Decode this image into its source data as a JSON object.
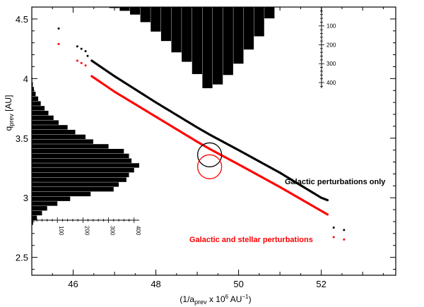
{
  "chart_data": {
    "type": "scatter",
    "xlabel": "(1/a_prev x 10^6 AU^-1)",
    "ylabel": "q_prev [AU]",
    "xlim": [
      45,
      53.8
    ],
    "ylim": [
      2.35,
      4.6
    ],
    "x_ticks": [
      46,
      48,
      50,
      52
    ],
    "y_ticks": [
      2.5,
      3,
      3.5,
      4,
      4.5
    ],
    "grid": false,
    "series": [
      {
        "name": "Galactic perturbations only",
        "color": "#000000",
        "isolated_points": [
          [
            45.65,
            4.42
          ],
          [
            46.1,
            4.27
          ],
          [
            46.2,
            4.25
          ],
          [
            46.3,
            4.23
          ],
          [
            46.35,
            4.19
          ]
        ],
        "curve_points": [
          [
            46.45,
            4.15
          ],
          [
            47.0,
            4.02
          ],
          [
            48.0,
            3.8
          ],
          [
            49.0,
            3.59
          ],
          [
            49.3,
            3.53
          ],
          [
            50.0,
            3.4
          ],
          [
            51.0,
            3.21
          ],
          [
            52.0,
            3.0
          ],
          [
            52.15,
            2.98
          ]
        ],
        "tail_points": [
          [
            52.3,
            2.75
          ],
          [
            52.55,
            2.73
          ]
        ]
      },
      {
        "name": "Galactic and stellar perturbations",
        "color": "#ff0000",
        "isolated_points": [
          [
            45.65,
            4.29
          ],
          [
            46.1,
            4.15
          ],
          [
            46.2,
            4.13
          ],
          [
            46.3,
            4.11
          ]
        ],
        "curve_points": [
          [
            46.45,
            4.02
          ],
          [
            47.0,
            3.89
          ],
          [
            48.0,
            3.68
          ],
          [
            49.0,
            3.47
          ],
          [
            49.3,
            3.41
          ],
          [
            50.0,
            3.28
          ],
          [
            51.0,
            3.09
          ],
          [
            52.0,
            2.89
          ],
          [
            52.15,
            2.86
          ]
        ],
        "tail_points": [
          [
            52.3,
            2.67
          ],
          [
            52.55,
            2.65
          ]
        ]
      }
    ],
    "annotations": [
      {
        "text": "Galactic perturbations only",
        "color": "#000000"
      },
      {
        "text": "Galactic and stellar perturbations",
        "color": "#ff0000"
      }
    ],
    "circles": [
      {
        "x": 49.3,
        "y": 3.36,
        "color": "#000000"
      },
      {
        "x": 49.3,
        "y": 3.26,
        "color": "#ff0000"
      }
    ],
    "histogram_top": {
      "orientation": "vertical-down",
      "axis_ticks": [
        100,
        200,
        300,
        400
      ],
      "bin_centers": [
        47.0,
        47.25,
        47.5,
        47.75,
        48.0,
        48.25,
        48.5,
        48.75,
        49.0,
        49.25,
        49.5,
        49.75,
        50.0,
        50.25,
        50.5,
        50.75
      ],
      "counts": [
        5,
        20,
        40,
        80,
        130,
        180,
        240,
        290,
        355,
        430,
        410,
        360,
        300,
        225,
        155,
        60
      ]
    },
    "histogram_left": {
      "orientation": "horizontal-right",
      "axis_ticks": [
        100,
        200,
        300,
        400
      ],
      "bin_centers": [
        2.79,
        2.83,
        2.87,
        2.91,
        2.95,
        2.99,
        3.03,
        3.07,
        3.11,
        3.15,
        3.19,
        3.23,
        3.27,
        3.31,
        3.35,
        3.39,
        3.43,
        3.47,
        3.51,
        3.55,
        3.59,
        3.63,
        3.67,
        3.71,
        3.75,
        3.79,
        3.83,
        3.87,
        3.91,
        3.95,
        3.99
      ],
      "counts": [
        5,
        20,
        40,
        60,
        100,
        150,
        230,
        320,
        340,
        370,
        380,
        400,
        420,
        390,
        380,
        360,
        300,
        240,
        210,
        170,
        140,
        105,
        85,
        65,
        50,
        35,
        25,
        15,
        8,
        4,
        2
      ]
    }
  }
}
